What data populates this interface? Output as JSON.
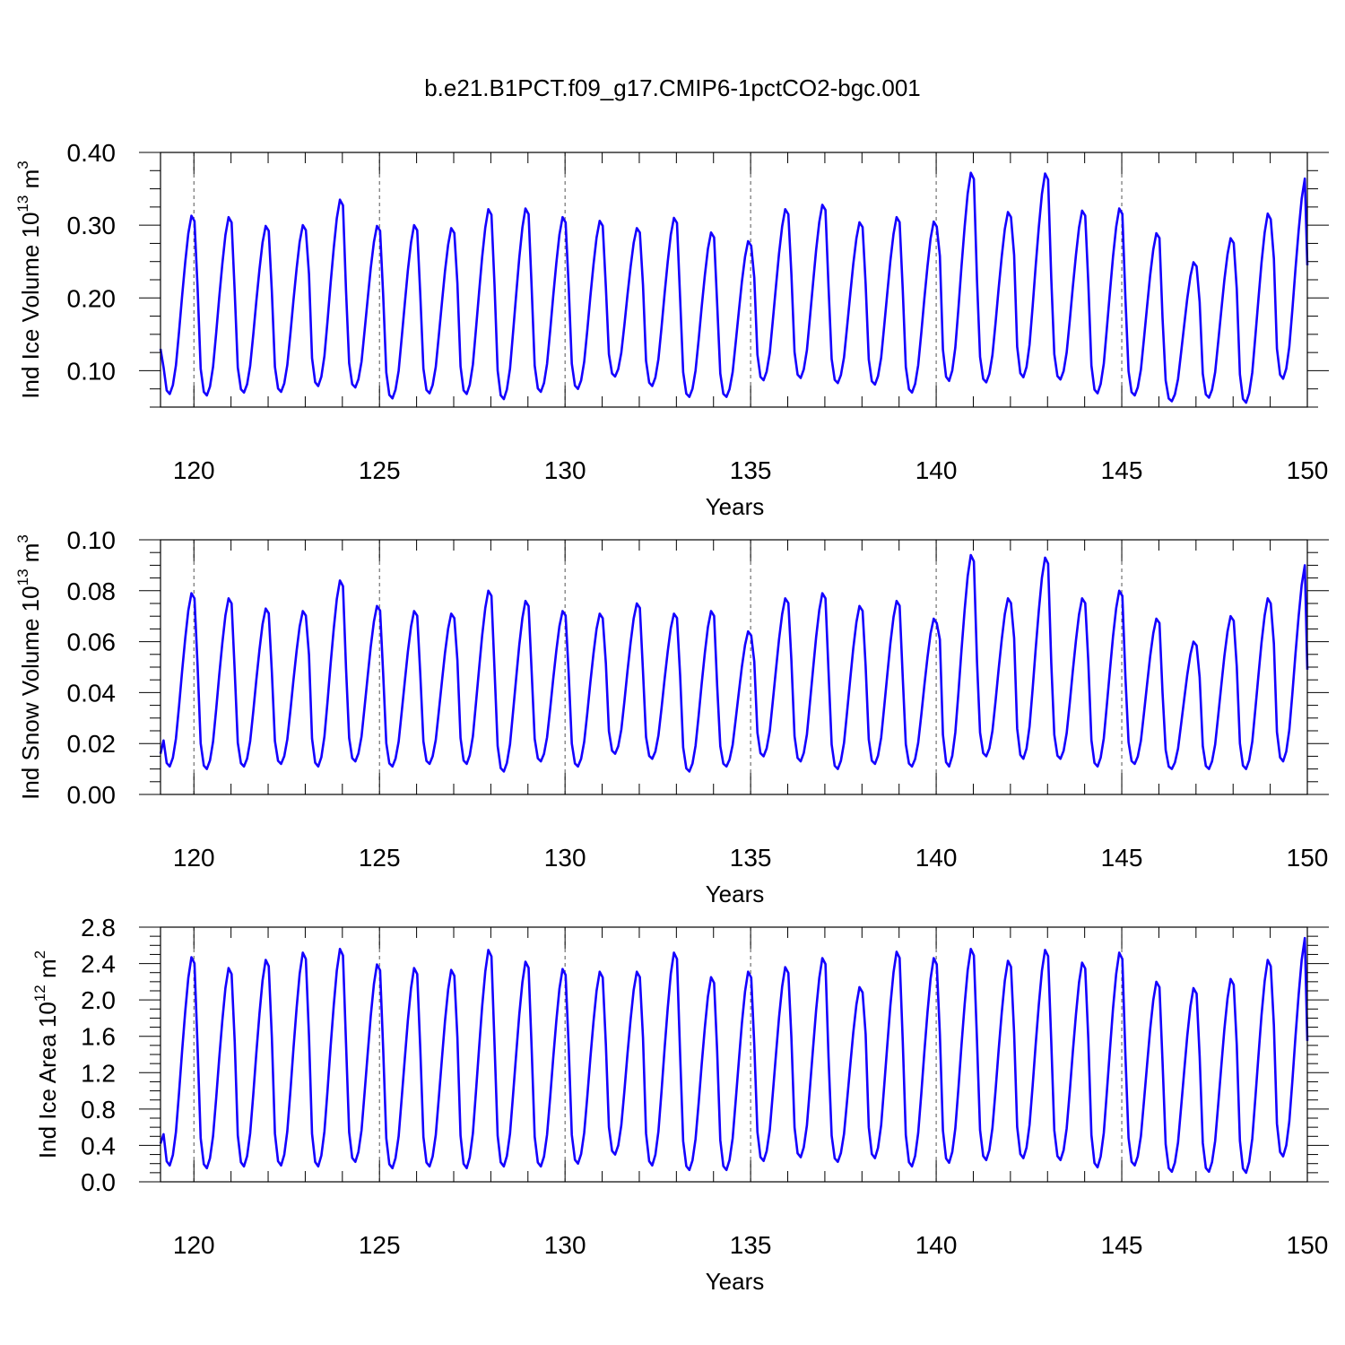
{
  "title": "b.e21.B1PCT.f09_g17.CMIP6-1pctCO2-bgc.001",
  "chart_data": [
    {
      "type": "line",
      "xlabel": "Years",
      "ylabel": {
        "base": "Ind Ice Volume 10",
        "exp": "13",
        "unit": " m",
        "unit_exp": "3"
      },
      "xlim": [
        119.1,
        150
      ],
      "ylim": [
        0.05,
        0.4
      ],
      "xticks": [
        120,
        125,
        130,
        135,
        140,
        145,
        150
      ],
      "xtick_labels": [
        "120",
        "125",
        "130",
        "135",
        "140",
        "145",
        "150"
      ],
      "yticks": [
        0.1,
        0.2,
        0.3,
        0.4
      ],
      "ytick_labels": [
        "0.10",
        "0.20",
        "0.30",
        "0.40"
      ],
      "ymin_tick": 0.025,
      "grid": "dashed vertical at major x ticks",
      "series": [
        {
          "color": "#1400ff",
          "start_year": 119.1,
          "step": 0.08333,
          "annual_max": [
            0.313,
            0.311,
            0.299,
            0.3,
            0.335,
            0.299,
            0.3,
            0.296,
            0.322,
            0.323,
            0.311,
            0.306,
            0.296,
            0.31,
            0.29,
            0.278,
            0.322,
            0.328,
            0.304,
            0.311,
            0.305,
            0.372,
            0.318,
            0.371,
            0.32,
            0.323,
            0.289,
            0.249,
            0.282,
            0.316,
            0.364
          ],
          "annual_min": [
            0.068,
            0.066,
            0.07,
            0.071,
            0.079,
            0.077,
            0.062,
            0.069,
            0.068,
            0.061,
            0.071,
            0.075,
            0.092,
            0.079,
            0.064,
            0.064,
            0.087,
            0.09,
            0.083,
            0.081,
            0.07,
            0.086,
            0.084,
            0.091,
            0.088,
            0.069,
            0.066,
            0.058,
            0.063,
            0.056,
            0.089
          ],
          "first_value": 0.13,
          "last_value": 0.245
        }
      ]
    },
    {
      "type": "line",
      "xlabel": "Years",
      "ylabel": {
        "base": "Ind Snow Volume 10",
        "exp": "13",
        "unit": " m",
        "unit_exp": "3"
      },
      "xlim": [
        119.1,
        150
      ],
      "ylim": [
        0.0,
        0.1
      ],
      "xticks": [
        120,
        125,
        130,
        135,
        140,
        145,
        150
      ],
      "xtick_labels": [
        "120",
        "125",
        "130",
        "135",
        "140",
        "145",
        "150"
      ],
      "yticks": [
        0.0,
        0.02,
        0.04,
        0.06,
        0.08,
        0.1
      ],
      "ytick_labels": [
        "0.00",
        "0.02",
        "0.04",
        "0.06",
        "0.08",
        "0.10"
      ],
      "ymin_tick": 0.005,
      "grid": "dashed vertical at major x ticks",
      "series": [
        {
          "color": "#1400ff",
          "start_year": 119.1,
          "step": 0.08333,
          "annual_max": [
            0.079,
            0.077,
            0.073,
            0.072,
            0.084,
            0.074,
            0.072,
            0.071,
            0.08,
            0.076,
            0.072,
            0.071,
            0.075,
            0.071,
            0.072,
            0.064,
            0.077,
            0.079,
            0.074,
            0.076,
            0.069,
            0.094,
            0.077,
            0.093,
            0.077,
            0.08,
            0.069,
            0.06,
            0.07,
            0.077,
            0.09
          ],
          "annual_min": [
            0.011,
            0.01,
            0.011,
            0.012,
            0.011,
            0.013,
            0.011,
            0.012,
            0.012,
            0.009,
            0.013,
            0.011,
            0.016,
            0.014,
            0.009,
            0.011,
            0.015,
            0.013,
            0.01,
            0.012,
            0.011,
            0.011,
            0.015,
            0.014,
            0.014,
            0.011,
            0.012,
            0.01,
            0.01,
            0.01,
            0.013
          ],
          "first_value": 0.016,
          "last_value": 0.049
        }
      ]
    },
    {
      "type": "line",
      "xlabel": "Years",
      "ylabel": {
        "base": "Ind Ice Area 10",
        "exp": "12",
        "unit": " m",
        "unit_exp": "2"
      },
      "xlim": [
        119.1,
        150
      ],
      "ylim": [
        0.0,
        2.8
      ],
      "xticks": [
        120,
        125,
        130,
        135,
        140,
        145,
        150
      ],
      "xtick_labels": [
        "120",
        "125",
        "130",
        "135",
        "140",
        "145",
        "150"
      ],
      "yticks": [
        0.0,
        0.4,
        0.8,
        1.2,
        1.6,
        2.0,
        2.4,
        2.8
      ],
      "ytick_labels": [
        "0.0",
        "0.4",
        "0.8",
        "1.2",
        "1.6",
        "2.0",
        "2.4",
        "2.8"
      ],
      "ymin_tick": 0.1,
      "grid": "dashed vertical at major x ticks",
      "series": [
        {
          "color": "#1400ff",
          "start_year": 119.1,
          "step": 0.08333,
          "annual_max": [
            2.47,
            2.35,
            2.44,
            2.52,
            2.56,
            2.39,
            2.35,
            2.33,
            2.55,
            2.42,
            2.34,
            2.31,
            2.31,
            2.52,
            2.25,
            2.31,
            2.36,
            2.46,
            2.14,
            2.53,
            2.46,
            2.56,
            2.43,
            2.55,
            2.41,
            2.52,
            2.2,
            2.13,
            2.23,
            2.44,
            2.68
          ],
          "annual_min": [
            0.18,
            0.15,
            0.17,
            0.18,
            0.17,
            0.22,
            0.15,
            0.17,
            0.15,
            0.17,
            0.17,
            0.2,
            0.3,
            0.18,
            0.13,
            0.13,
            0.23,
            0.27,
            0.22,
            0.26,
            0.17,
            0.21,
            0.24,
            0.26,
            0.24,
            0.16,
            0.18,
            0.11,
            0.11,
            0.1,
            0.28
          ],
          "first_value": 0.42,
          "last_value": 1.55
        }
      ]
    }
  ]
}
